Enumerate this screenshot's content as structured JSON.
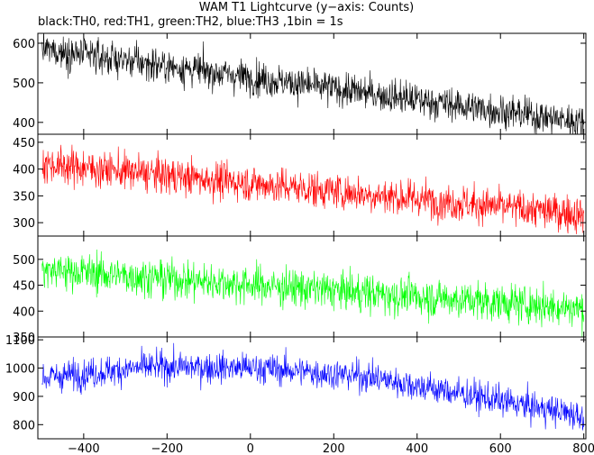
{
  "title": "WAM T1 Lightcurve (y−axis: Counts)",
  "subtitle": "black:TH0, red:TH1, green:TH2, blue:TH3 ,1bin = 1s",
  "chart_data": [
    {
      "type": "line",
      "series": [
        {
          "name": "TH0",
          "color": "#000000",
          "x": [
            -500,
            800
          ],
          "trend": [
            585,
            400
          ],
          "noise": 30
        }
      ],
      "xlim": [
        -510,
        805
      ],
      "ylim": [
        370,
        625
      ],
      "yticks": [
        400,
        500,
        600
      ],
      "grid": false
    },
    {
      "type": "line",
      "series": [
        {
          "name": "TH1",
          "color": "#ff0000",
          "x": [
            -500,
            800
          ],
          "trend": [
            410,
            315
          ],
          "noise": 24
        }
      ],
      "xlim": [
        -510,
        805
      ],
      "ylim": [
        275,
        465
      ],
      "yticks": [
        300,
        350,
        400,
        450
      ],
      "grid": false
    },
    {
      "type": "line",
      "series": [
        {
          "name": "TH2",
          "color": "#00ff00",
          "x": [
            -500,
            800
          ],
          "trend": [
            480,
            405
          ],
          "noise": 26
        }
      ],
      "xlim": [
        -510,
        805
      ],
      "ylim": [
        350,
        545
      ],
      "yticks": [
        350,
        400,
        450,
        500
      ],
      "grid": false
    },
    {
      "type": "line",
      "series": [
        {
          "name": "TH3",
          "color": "#0000ff",
          "x": [
            -500,
            800
          ],
          "trend": [
            965,
            1005,
            1000,
            970,
            900,
            830
          ],
          "noise": 38
        }
      ],
      "xlim": [
        -510,
        805
      ],
      "ylim": [
        750,
        1110
      ],
      "yticks": [
        800,
        900,
        1000,
        1100
      ],
      "xticks": [
        -400,
        -200,
        0,
        200,
        400,
        600,
        800
      ],
      "grid": false
    }
  ]
}
